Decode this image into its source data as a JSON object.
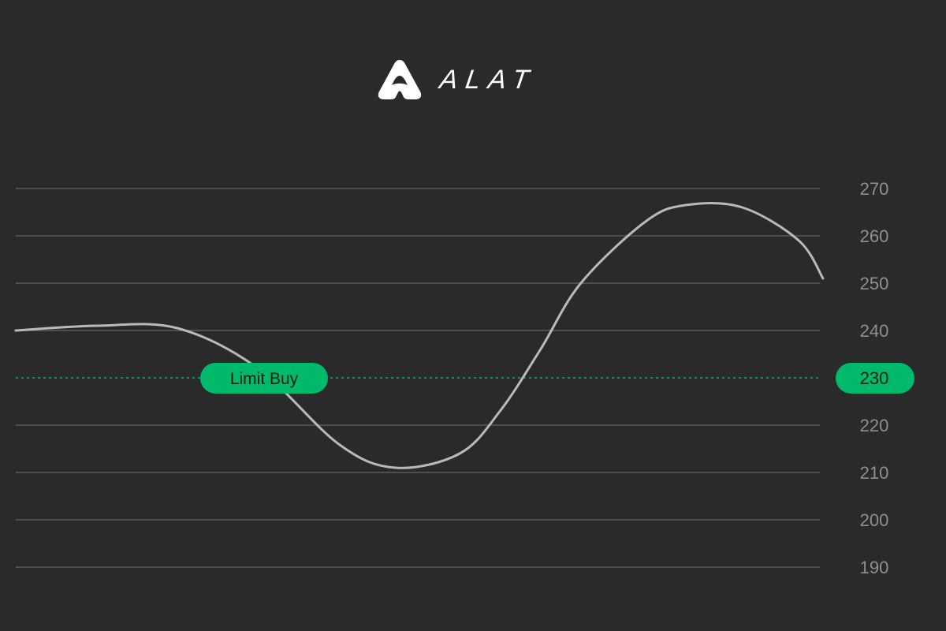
{
  "brand": {
    "name": "ALAT",
    "mark_icon": "alat-logo-icon"
  },
  "colors": {
    "background": "#2a2a2a",
    "grid": "#5a5a5a",
    "line": "#b9b9b9",
    "tick_text": "#8f8f8f",
    "accent": "#00b96b",
    "pill_text": "#0f1e16"
  },
  "chart_data": {
    "type": "line",
    "title": "",
    "xlabel": "",
    "ylabel": "",
    "ylim": [
      190,
      270
    ],
    "y_ticks": [
      270,
      260,
      250,
      240,
      230,
      220,
      210,
      200,
      190
    ],
    "grid": true,
    "y_axis_position": "right",
    "series": [
      {
        "x": [
          0,
          0.1,
          0.2,
          0.3,
          0.4,
          0.47,
          0.55,
          0.6,
          0.65,
          0.7,
          0.78,
          0.83,
          0.9,
          0.97,
          1.0
        ],
        "values": [
          240,
          241,
          240.5,
          232,
          216,
          211,
          214,
          223,
          236,
          250,
          263,
          266.5,
          266,
          259,
          251
        ]
      }
    ],
    "limit_line": {
      "value": 230,
      "label": "Limit Buy",
      "value_label": "230",
      "style": "dotted"
    }
  }
}
